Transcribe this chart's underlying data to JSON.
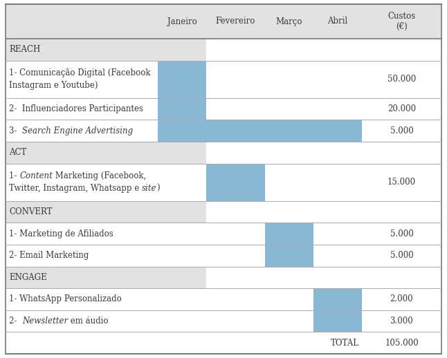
{
  "header_row": [
    "",
    "Janeiro",
    "Fevereiro",
    "Março",
    "Abril",
    "Custos\n(€)"
  ],
  "rows": [
    {
      "type": "section",
      "label": "REACH",
      "blue_cols": []
    },
    {
      "type": "data2",
      "label": "1- Comunicação Digital (Facebook\nInstagram e Youtube)",
      "blue_cols": [
        1
      ],
      "cost": "50.000"
    },
    {
      "type": "data1",
      "label": "2-  Influenciadores Participantes",
      "blue_cols": [
        1
      ],
      "cost": "20.000"
    },
    {
      "type": "data1",
      "label": "3-  |Search Engine Advertising|",
      "blue_cols": [
        1,
        2,
        3,
        4
      ],
      "cost": "5.000"
    },
    {
      "type": "section",
      "label": "ACT",
      "blue_cols": []
    },
    {
      "type": "data2",
      "label": "1- |Content| Marketing (Facebook,\nTwitter, Instagram, Whatsapp e |site|)",
      "blue_cols": [
        2
      ],
      "cost": "15.000"
    },
    {
      "type": "section",
      "label": "CONVERT",
      "blue_cols": []
    },
    {
      "type": "data1",
      "label": "1- Marketing de Afiliados",
      "blue_cols": [
        3
      ],
      "cost": "5.000"
    },
    {
      "type": "data1",
      "label": "2- Email Marketing",
      "blue_cols": [
        3
      ],
      "cost": "5.000"
    },
    {
      "type": "section",
      "label": "ENGAGE",
      "blue_cols": []
    },
    {
      "type": "data1",
      "label": "1- WhatsApp Personalizado",
      "blue_cols": [
        4
      ],
      "cost": "2.000"
    },
    {
      "type": "data1",
      "label": "2-  |Newsletter| em áudio",
      "blue_cols": [
        4
      ],
      "cost": "3.000"
    },
    {
      "type": "total",
      "label": "",
      "blue_cols": [],
      "cost": "105.000"
    }
  ],
  "blue_color": "#8ab8d4",
  "section_bg": "#e2e2e2",
  "header_bg": "#e2e2e2",
  "white_bg": "#ffffff",
  "line_color": "#aaaaaa",
  "thick_line_color": "#777777",
  "text_color": "#3a3a3a",
  "font_size": 8.5
}
